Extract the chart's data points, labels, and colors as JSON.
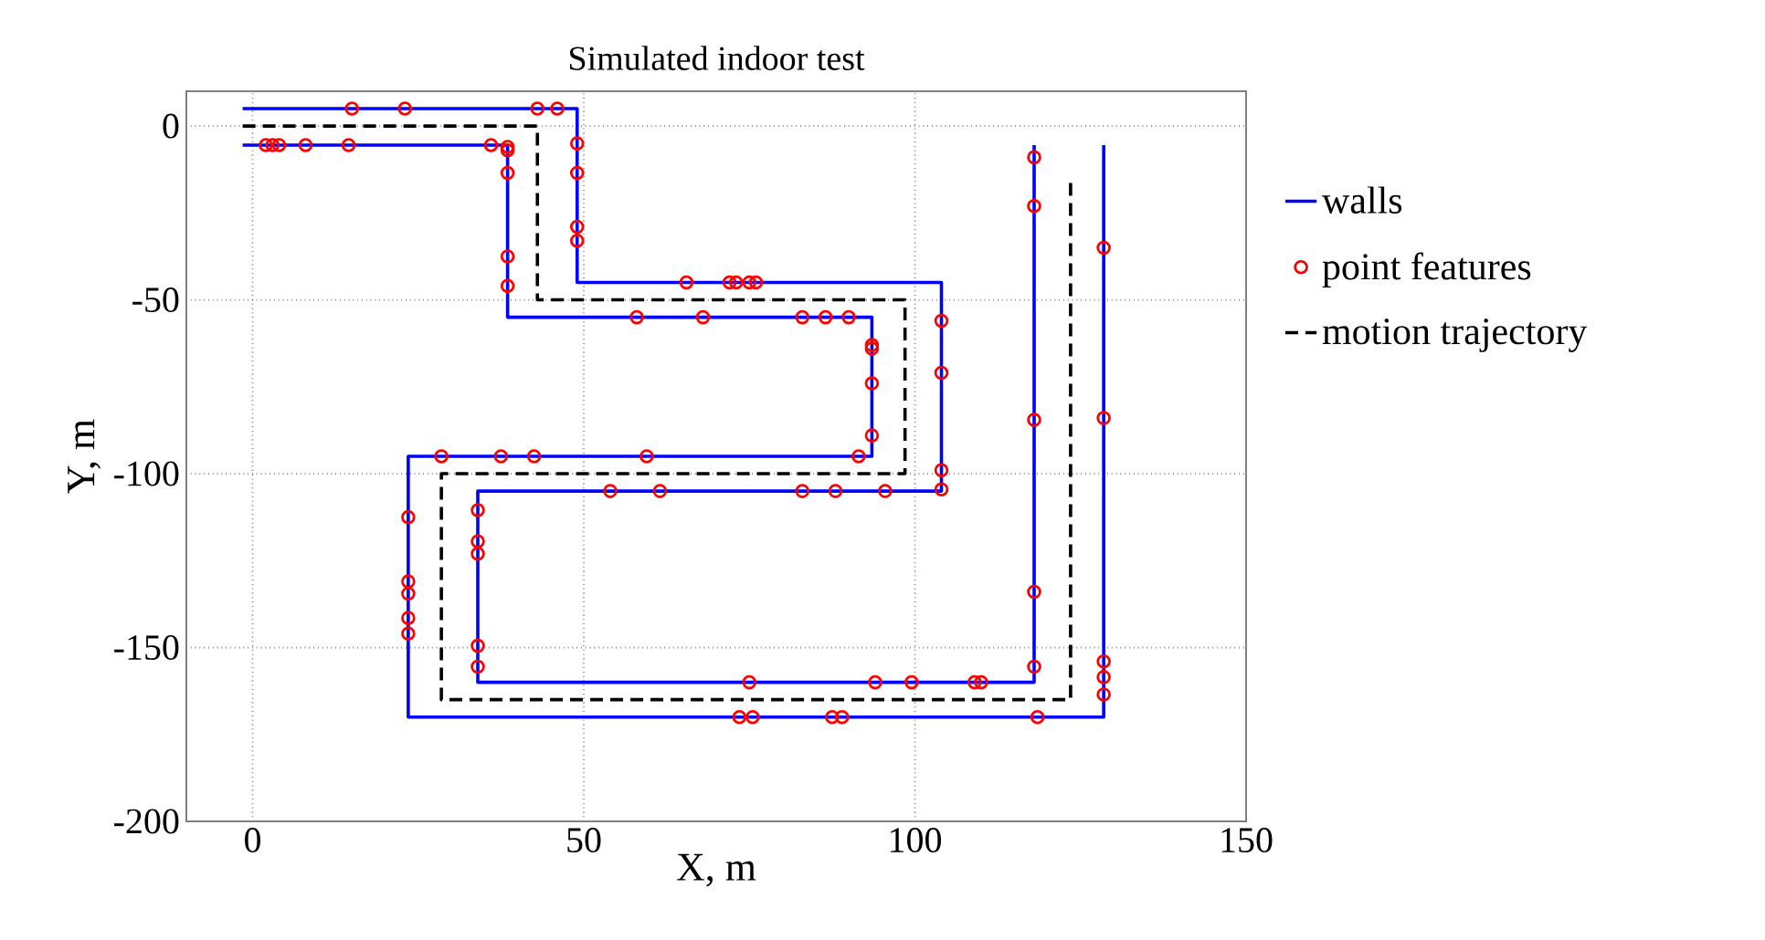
{
  "chart_data": {
    "type": "line",
    "title": "Simulated indoor test",
    "xlabel": "X, m",
    "ylabel": "Y, m",
    "xlim": [
      -10,
      150
    ],
    "ylim": [
      -200,
      10
    ],
    "xticks": [
      0,
      50,
      100,
      150
    ],
    "yticks": [
      0,
      -50,
      -100,
      -150,
      -200
    ],
    "grid": true,
    "legend": "right",
    "series": [
      {
        "name": "walls",
        "color": "#0000ff",
        "line_style": "solid",
        "marker": "none",
        "x": [
          -1.5,
          49,
          49,
          104,
          104,
          34,
          34,
          118,
          118,
          null,
          -1.5,
          38.5,
          38.5,
          93.5,
          93.5,
          23.5,
          23.5,
          128.5,
          128.5
        ],
        "values": [
          5,
          5,
          -45,
          -45,
          -105,
          -105,
          -160,
          -160,
          -5.5,
          null,
          -5.5,
          -5.5,
          -55,
          -55,
          -95,
          -95,
          -170,
          -170,
          -5.5
        ]
      },
      {
        "name": "point features",
        "type": "scatter",
        "color": "#ff0000",
        "marker": "circle",
        "x": [
          15,
          23,
          43,
          46,
          49,
          49,
          49,
          49,
          65.5,
          72,
          73,
          75,
          76,
          104,
          104,
          104,
          104,
          54,
          61.5,
          83,
          88,
          95.5,
          34,
          34,
          34,
          34,
          34,
          75,
          94,
          99.5,
          109,
          110,
          118,
          118,
          118,
          118,
          118,
          2,
          3,
          4,
          8,
          14.5,
          36,
          38.5,
          38.5,
          38.5,
          38.5,
          38.5,
          58,
          68,
          83,
          86.5,
          90,
          93.5,
          93.5,
          93.5,
          93.5,
          91.5,
          28.5,
          37.5,
          42.5,
          59.5,
          23.5,
          23.5,
          23.5,
          23.5,
          23.5,
          73.5,
          75.5,
          87.5,
          89,
          118.5,
          128.5,
          128.5,
          128.5,
          128.5,
          128.5
        ],
        "values": [
          5,
          5,
          5,
          5,
          -5,
          -13.5,
          -29,
          -33,
          -45,
          -45,
          -45,
          -45,
          -45,
          -56,
          -71,
          -99,
          -104.5,
          -105,
          -105,
          -105,
          -105,
          -105,
          -110.5,
          -119.5,
          -123,
          -149.5,
          -155.5,
          -160,
          -160,
          -160,
          -160,
          -160,
          -155.5,
          -134,
          -84.5,
          -23,
          -9,
          -5.5,
          -5.5,
          -5.5,
          -5.5,
          -5.5,
          -5.5,
          -6,
          -7,
          -13.5,
          -37.5,
          -46,
          -55,
          -55,
          -55,
          -55,
          -55,
          -63,
          -64,
          -74,
          -89,
          -95,
          -95,
          -95,
          -95,
          -95,
          -112.5,
          -131,
          -134.5,
          -141.5,
          -146,
          -170,
          -170,
          -170,
          -170,
          -170,
          -163.5,
          -158.5,
          -154,
          -84,
          -35
        ]
      },
      {
        "name": "motion trajectory",
        "color": "#000000",
        "line_style": "dashed",
        "marker": "none",
        "x": [
          -1.5,
          43,
          43,
          98.5,
          98.5,
          28.5,
          28.5,
          123.5,
          123.5
        ],
        "values": [
          0,
          0,
          -50,
          -50,
          -100,
          -100,
          -165,
          -165,
          -15.5
        ]
      }
    ]
  }
}
